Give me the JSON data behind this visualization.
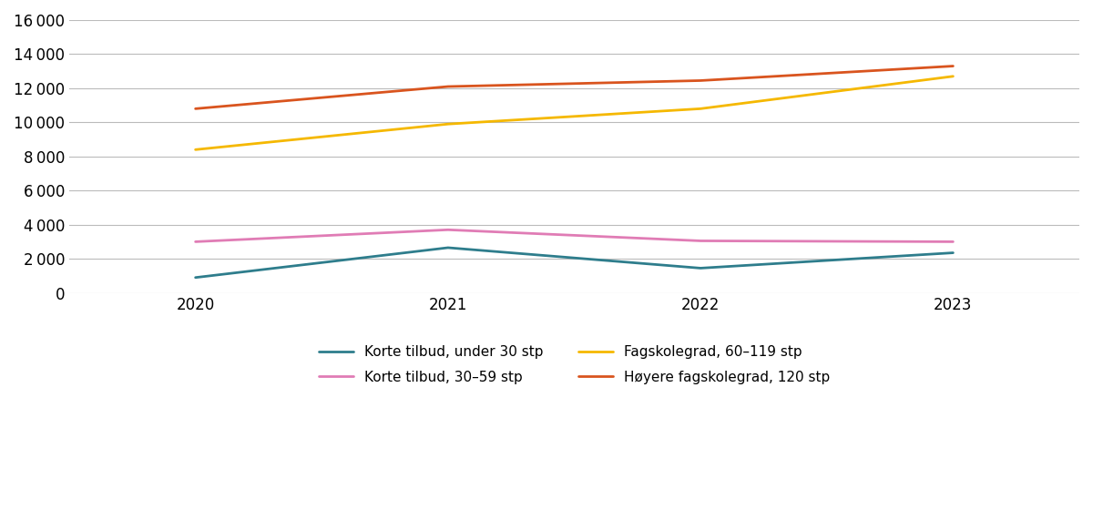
{
  "years": [
    2020,
    2021,
    2022,
    2023
  ],
  "series": [
    {
      "label": "Korte tilbud, under 30 stp",
      "values": [
        900,
        2650,
        1450,
        2350
      ],
      "color": "#2e7d8c",
      "linewidth": 2.0
    },
    {
      "label": "Korte tilbud, 30–59 stp",
      "values": [
        3000,
        3700,
        3050,
        3000
      ],
      "color": "#e07cb5",
      "linewidth": 2.0
    },
    {
      "label": "Fagskolegrad, 60–119 stp",
      "values": [
        8400,
        9900,
        10800,
        12700
      ],
      "color": "#f5b800",
      "linewidth": 2.0
    },
    {
      "label": "Høyere fagskolegrad, 120 stp",
      "values": [
        10800,
        12100,
        12450,
        13300
      ],
      "color": "#d9541e",
      "linewidth": 2.0
    }
  ],
  "xlim": [
    2019.5,
    2023.5
  ],
  "ylim": [
    0,
    16000
  ],
  "yticks": [
    0,
    2000,
    4000,
    6000,
    8000,
    10000,
    12000,
    14000,
    16000
  ],
  "background_color": "#ffffff",
  "grid_color": "#bbbbbb",
  "legend_ncol": 2,
  "legend_fontsize": 11,
  "tick_fontsize": 12
}
